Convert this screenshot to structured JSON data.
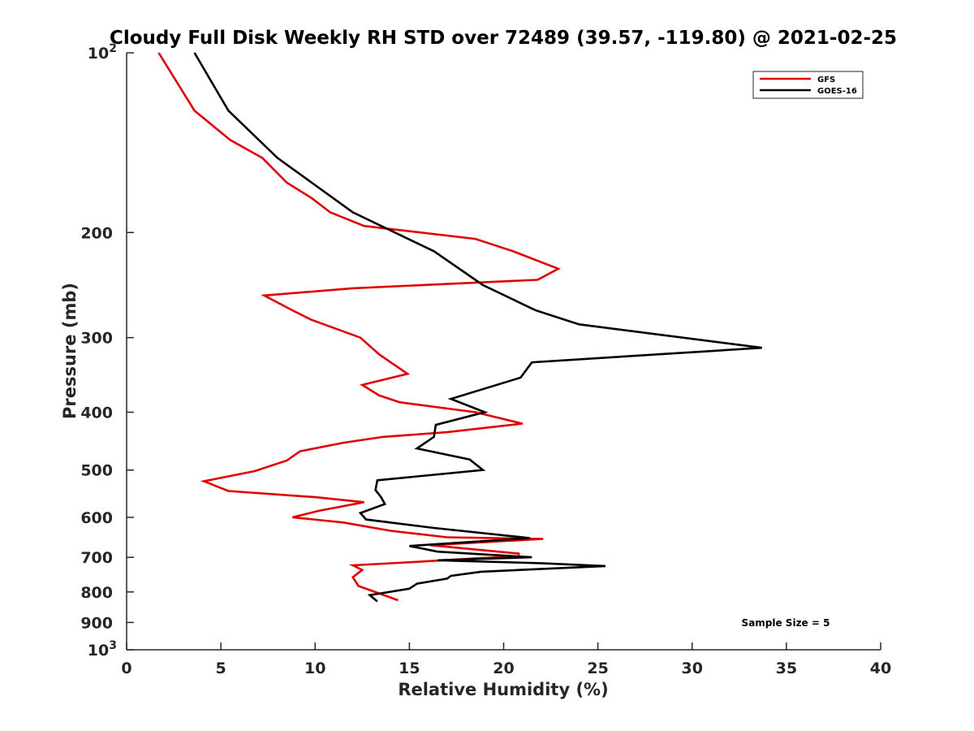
{
  "chart_data": {
    "type": "line",
    "title": "Cloudy Full Disk Weekly RH STD over 72489 (39.57, -119.80) @ 2021-02-25",
    "xlabel": "Relative Humidity (%)",
    "ylabel": "Pressure (mb)",
    "xlim": [
      0,
      40
    ],
    "ylim": [
      100,
      1000
    ],
    "y_scale": "log",
    "y_reversed": true,
    "grid": false,
    "x_ticks": [
      0,
      5,
      10,
      15,
      20,
      25,
      30,
      35,
      40
    ],
    "x_tick_labels": [
      "0",
      "5",
      "10",
      "15",
      "20",
      "25",
      "30",
      "35",
      "40"
    ],
    "y_ticks": [
      {
        "value": 100,
        "base": "10",
        "exp": "2"
      },
      {
        "value": 200,
        "label": "200"
      },
      {
        "value": 300,
        "label": "300"
      },
      {
        "value": 400,
        "label": "400"
      },
      {
        "value": 500,
        "label": "500"
      },
      {
        "value": 600,
        "label": "600"
      },
      {
        "value": 700,
        "label": "700"
      },
      {
        "value": 800,
        "label": "800"
      },
      {
        "value": 900,
        "label": "900"
      },
      {
        "value": 1000,
        "base": "10",
        "exp": "3"
      }
    ],
    "legend_position": "top-right",
    "series": [
      {
        "name": "GFS",
        "color": "#e00000",
        "points": [
          [
            1.7,
            100
          ],
          [
            3.6,
            125
          ],
          [
            5.5,
            140
          ],
          [
            7.2,
            150
          ],
          [
            8.5,
            165
          ],
          [
            9.8,
            175
          ],
          [
            10.8,
            185
          ],
          [
            12.6,
            195
          ],
          [
            18.5,
            205
          ],
          [
            20.5,
            215
          ],
          [
            22.9,
            230
          ],
          [
            21.8,
            240
          ],
          [
            12.0,
            248
          ],
          [
            7.3,
            255
          ],
          [
            8.8,
            270
          ],
          [
            9.8,
            280
          ],
          [
            12.4,
            300
          ],
          [
            13.4,
            320
          ],
          [
            14.9,
            345
          ],
          [
            12.5,
            360
          ],
          [
            13.4,
            375
          ],
          [
            14.5,
            385
          ],
          [
            18.5,
            400
          ],
          [
            21.0,
            418
          ],
          [
            17.0,
            432
          ],
          [
            13.6,
            440
          ],
          [
            11.5,
            450
          ],
          [
            9.2,
            465
          ],
          [
            8.5,
            482
          ],
          [
            6.8,
            502
          ],
          [
            4.1,
            522
          ],
          [
            5.4,
            542
          ],
          [
            10.0,
            555
          ],
          [
            12.6,
            566
          ],
          [
            10.2,
            585
          ],
          [
            8.8,
            600
          ],
          [
            11.5,
            612
          ],
          [
            14.0,
            632
          ],
          [
            17.0,
            648
          ],
          [
            22.1,
            652
          ],
          [
            16.1,
            668
          ],
          [
            20.8,
            690
          ],
          [
            20.8,
            698
          ],
          [
            18.8,
            702
          ],
          [
            14.8,
            714
          ],
          [
            12.0,
            722
          ],
          [
            12.5,
            735
          ],
          [
            12.0,
            756
          ],
          [
            12.3,
            782
          ],
          [
            12.8,
            792
          ],
          [
            14.4,
            826
          ]
        ]
      },
      {
        "name": "GOES-16",
        "color": "#000000",
        "points": [
          [
            3.6,
            100
          ],
          [
            5.4,
            125
          ],
          [
            8.0,
            150
          ],
          [
            12.0,
            185
          ],
          [
            16.3,
            215
          ],
          [
            18.9,
            245
          ],
          [
            21.7,
            270
          ],
          [
            24.0,
            285
          ],
          [
            33.7,
            312
          ],
          [
            21.5,
            330
          ],
          [
            20.9,
            350
          ],
          [
            17.2,
            380
          ],
          [
            19.0,
            400
          ],
          [
            16.4,
            420
          ],
          [
            16.3,
            440
          ],
          [
            15.4,
            460
          ],
          [
            18.2,
            480
          ],
          [
            18.9,
            500
          ],
          [
            13.3,
            520
          ],
          [
            13.2,
            540
          ],
          [
            13.5,
            555
          ],
          [
            13.7,
            570
          ],
          [
            12.4,
            590
          ],
          [
            12.7,
            605
          ],
          [
            16.3,
            625
          ],
          [
            21.4,
            650
          ],
          [
            15.0,
            670
          ],
          [
            16.5,
            685
          ],
          [
            21.5,
            700
          ],
          [
            16.5,
            708
          ],
          [
            22.0,
            716
          ],
          [
            25.4,
            724
          ],
          [
            18.8,
            740
          ],
          [
            17.2,
            752
          ],
          [
            17.0,
            760
          ],
          [
            15.4,
            775
          ],
          [
            15.0,
            790
          ],
          [
            12.9,
            810
          ],
          [
            13.3,
            830
          ]
        ]
      }
    ],
    "annotations": [
      {
        "text": "Sample Size = 5"
      }
    ],
    "colors": {
      "axis": "#262626",
      "background": "#ffffff"
    }
  }
}
